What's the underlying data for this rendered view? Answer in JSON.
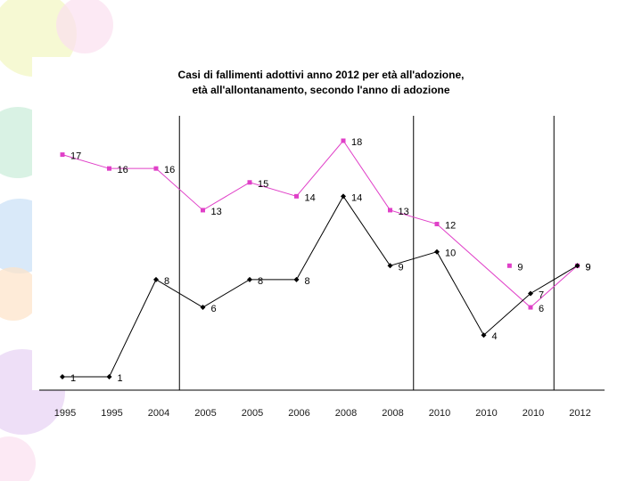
{
  "colors": {
    "series_upper": "#e040c8",
    "series_lower": "#000000",
    "decor": [
      "#f4f7c8",
      "#c9ecd9",
      "#cfe3f7",
      "#ead7f5",
      "#fde3c8",
      "#fbe0ef"
    ]
  },
  "chart_data": {
    "type": "line",
    "title": [
      "Casi di fallimenti adottivi anno 2012 per età all'adozione,",
      "età all'allontanamento, secondo l'anno di adozione"
    ],
    "categories": [
      "1995",
      "1995",
      "2004",
      "2005",
      "2005",
      "2006",
      "2008",
      "2008",
      "2010",
      "2010",
      "2010",
      "2012"
    ],
    "series": [
      {
        "name": "età all'allontanamento",
        "color": "#e040c8",
        "marker": "square",
        "values": [
          17,
          16,
          16,
          13,
          15,
          14,
          18,
          13,
          12,
          null,
          6,
          9
        ]
      },
      {
        "name": "età all'adozione",
        "color": "#000000",
        "marker": "diamond",
        "values": [
          1,
          1,
          8,
          6,
          8,
          8,
          14,
          9,
          10,
          4,
          7,
          9
        ]
      }
    ],
    "extra_points": [
      {
        "series": 0,
        "category_index": 9.55,
        "value": 9
      }
    ],
    "ylim": [
      0,
      19
    ],
    "xlabel": "",
    "ylabel": "",
    "separators_after_category": [
      2.5,
      7.5,
      10.5
    ],
    "legend": "none"
  }
}
